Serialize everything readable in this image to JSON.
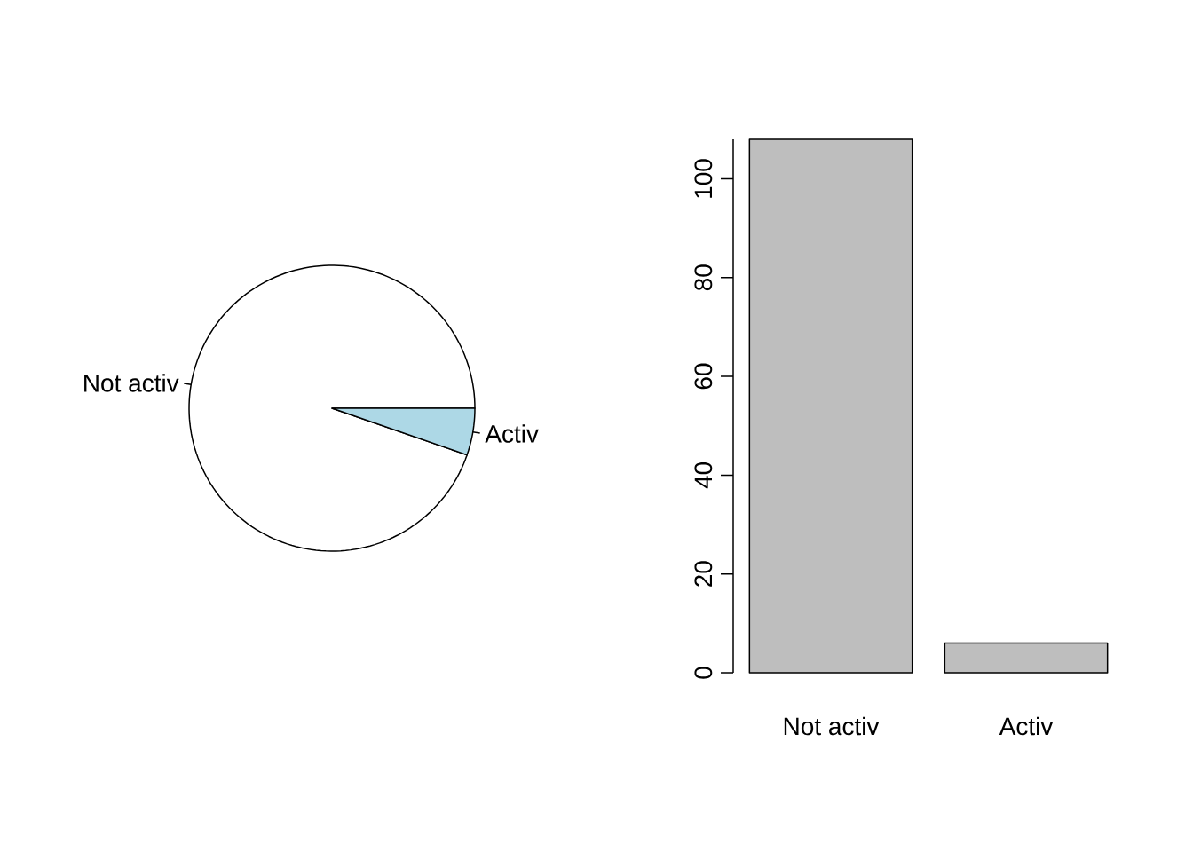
{
  "chart_data": [
    {
      "type": "pie",
      "categories": [
        "Not activ",
        "Activ"
      ],
      "values": [
        94.7,
        5.3
      ],
      "colors": [
        "#ffffff",
        "#add8e6"
      ]
    },
    {
      "type": "bar",
      "categories": [
        "Not activ",
        "Activ"
      ],
      "values": [
        108,
        6
      ],
      "color": "#bebebe",
      "ylim": [
        0,
        108
      ],
      "yticks": [
        0,
        20,
        40,
        60,
        80,
        100
      ]
    }
  ]
}
